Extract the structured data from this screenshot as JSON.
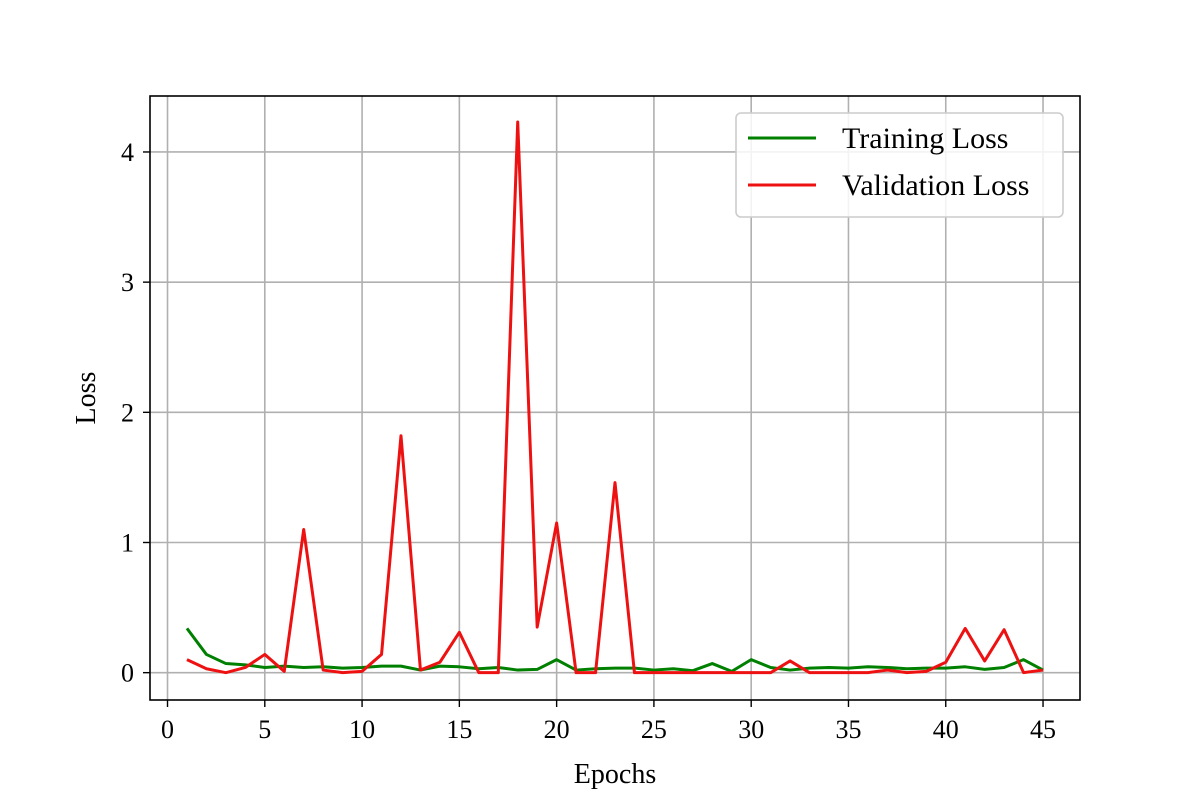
{
  "chart_data": {
    "type": "line",
    "title": "",
    "xlabel": "Epochs",
    "ylabel": "Loss",
    "xlim": [
      -0.9,
      46.9
    ],
    "ylim": [
      -0.21,
      4.43
    ],
    "xticks": [
      0,
      5,
      10,
      15,
      20,
      25,
      30,
      35,
      40,
      45
    ],
    "yticks": [
      0,
      1,
      2,
      3,
      4
    ],
    "grid": true,
    "legend_position": "top-right",
    "x": [
      1,
      2,
      3,
      4,
      5,
      6,
      7,
      8,
      9,
      10,
      11,
      12,
      13,
      14,
      15,
      16,
      17,
      18,
      19,
      20,
      21,
      22,
      23,
      24,
      25,
      26,
      27,
      28,
      29,
      30,
      31,
      32,
      33,
      34,
      35,
      36,
      37,
      38,
      39,
      40,
      41,
      42,
      43,
      44,
      45
    ],
    "series": [
      {
        "name": "Training Loss",
        "color": "#008000",
        "values": [
          0.34,
          0.14,
          0.07,
          0.06,
          0.04,
          0.05,
          0.04,
          0.045,
          0.035,
          0.04,
          0.05,
          0.05,
          0.02,
          0.05,
          0.045,
          0.03,
          0.04,
          0.02,
          0.025,
          0.1,
          0.02,
          0.03,
          0.035,
          0.035,
          0.02,
          0.03,
          0.015,
          0.07,
          0.01,
          0.1,
          0.04,
          0.02,
          0.035,
          0.04,
          0.035,
          0.045,
          0.04,
          0.03,
          0.035,
          0.035,
          0.045,
          0.025,
          0.04,
          0.1,
          0.02
        ]
      },
      {
        "name": "Validation Loss",
        "color": "#ee1111",
        "values": [
          0.1,
          0.03,
          0.0,
          0.04,
          0.14,
          0.01,
          1.1,
          0.02,
          0.0,
          0.01,
          0.14,
          1.82,
          0.02,
          0.08,
          0.31,
          0.0,
          0.0,
          4.23,
          0.35,
          1.15,
          0.0,
          0.0,
          1.46,
          0.0,
          0.0,
          0.0,
          0.0,
          0.0,
          0.0,
          0.0,
          0.0,
          0.09,
          0.0,
          0.0,
          0.0,
          0.0,
          0.02,
          0.0,
          0.01,
          0.08,
          0.34,
          0.09,
          0.33,
          0.0,
          0.02
        ]
      }
    ]
  }
}
